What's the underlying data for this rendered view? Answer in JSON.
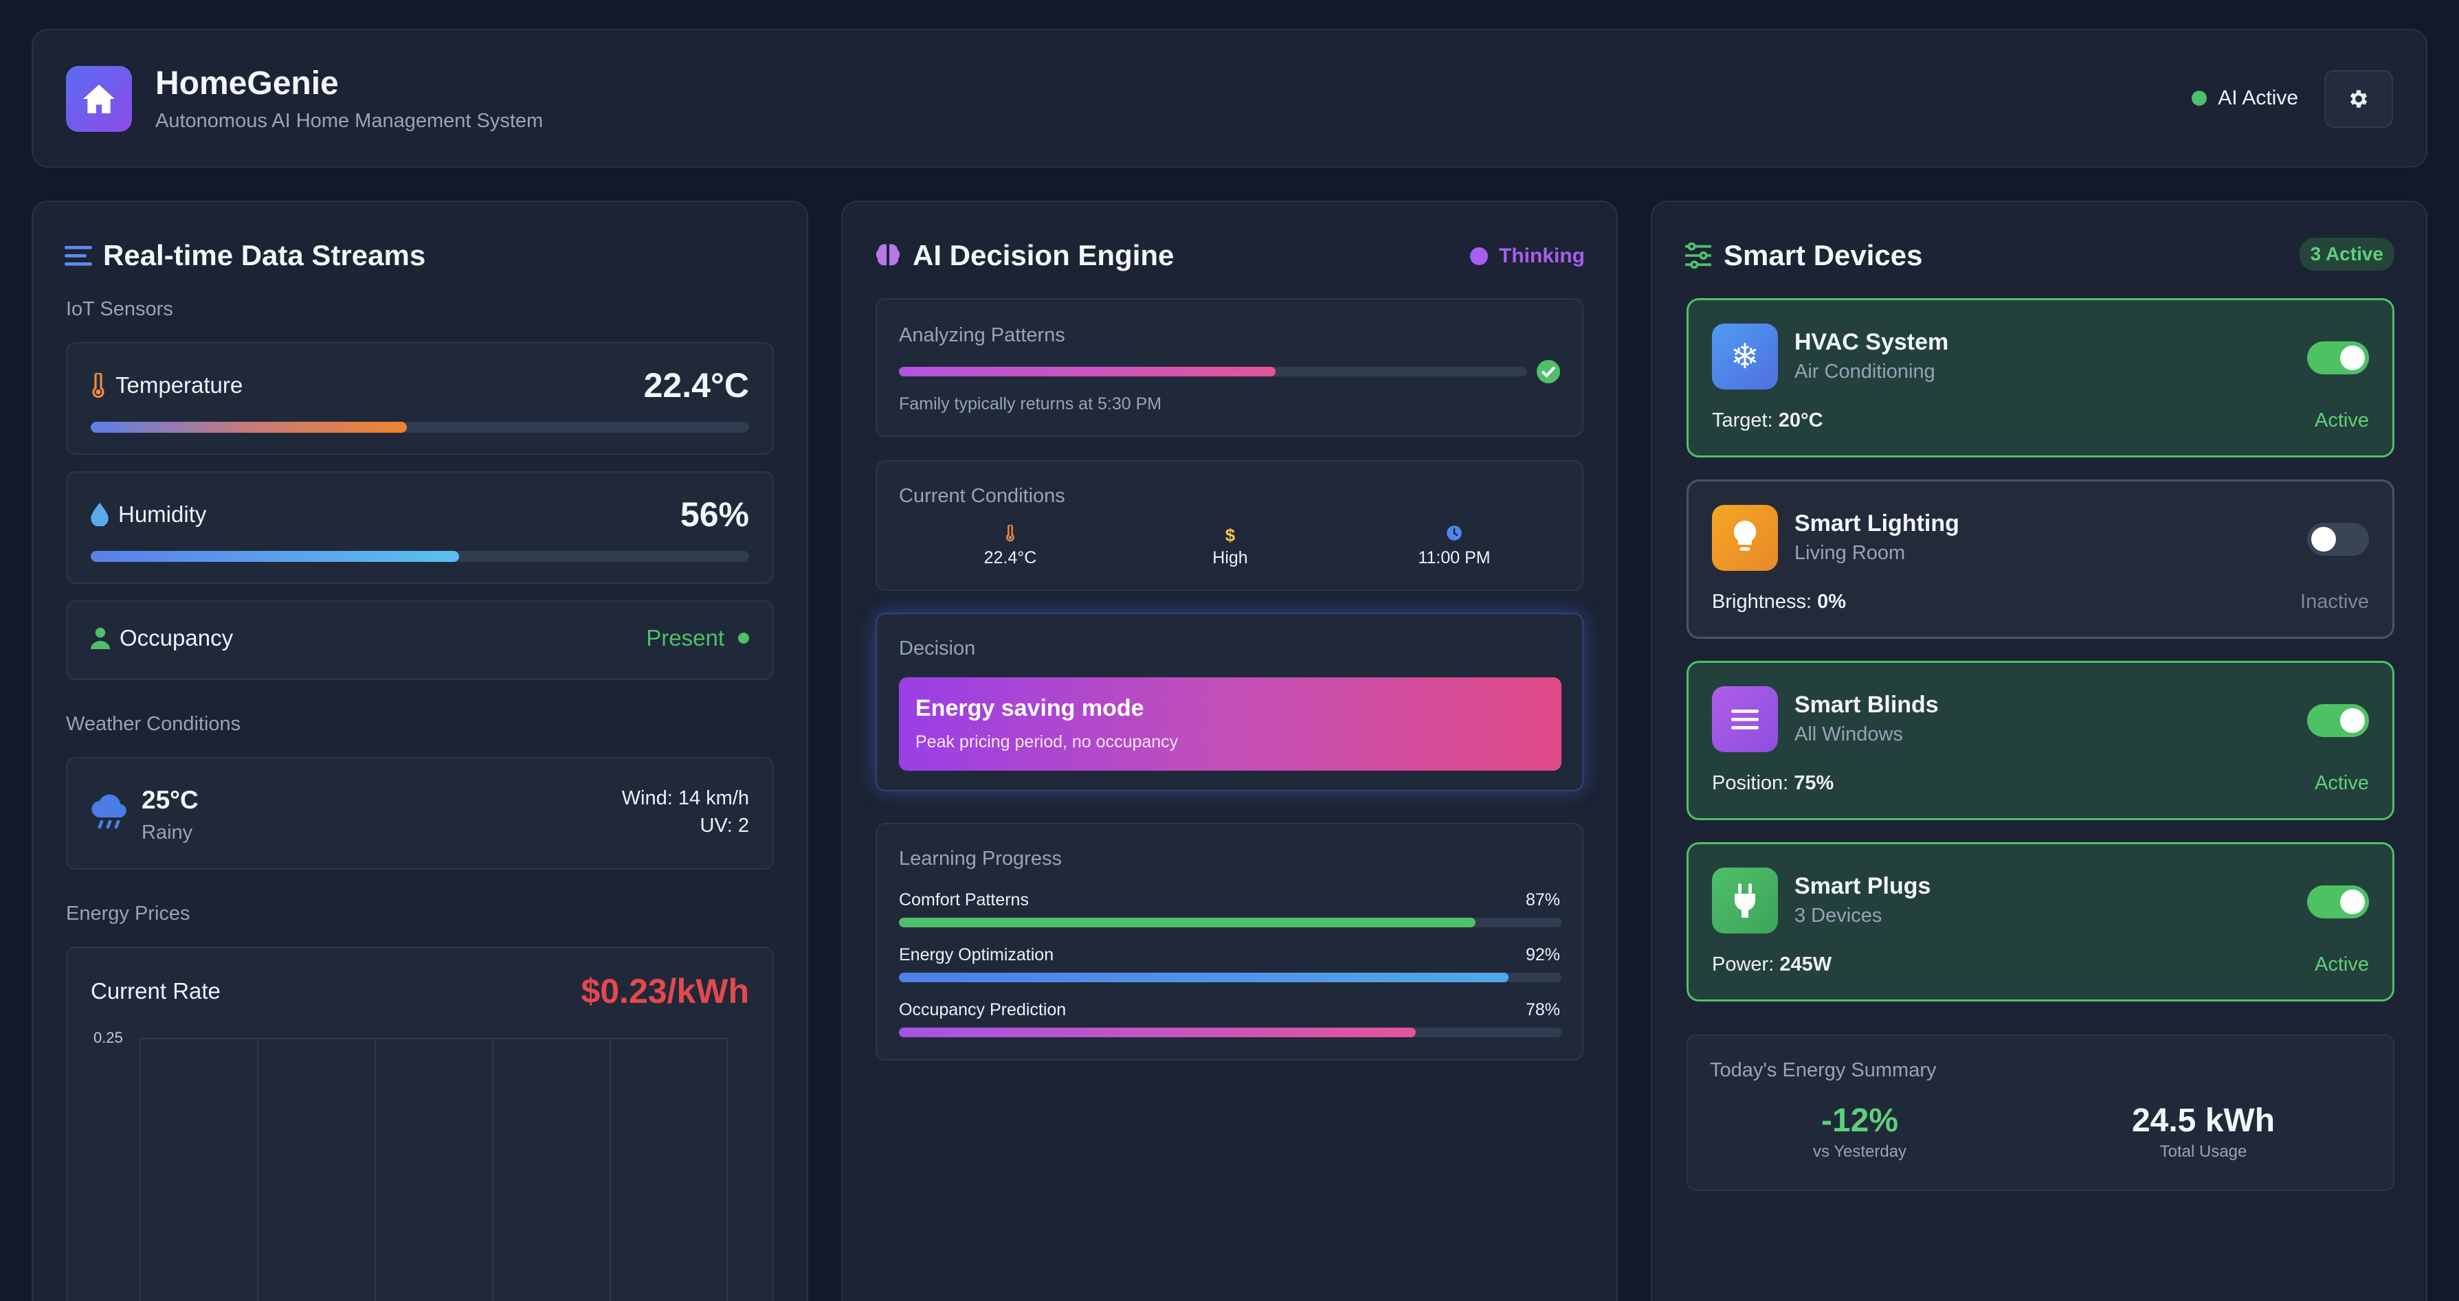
{
  "header": {
    "title": "HomeGenie",
    "subtitle": "Autonomous AI Home Management System",
    "status_label": "AI Active",
    "status_color": "#4fbf6a",
    "logo_icon": "home-icon",
    "settings_icon": "gear-icon"
  },
  "streams": {
    "title": "Real-time Data Streams",
    "iot_label": "IoT Sensors",
    "temperature": {
      "label": "Temperature",
      "value": "22.4°C",
      "level": 0.48
    },
    "humidity": {
      "label": "Humidity",
      "value": "56%",
      "level": 0.56
    },
    "occupancy": {
      "label": "Occupancy",
      "value": "Present"
    },
    "weather_label": "Weather Conditions",
    "weather": {
      "temp": "25°C",
      "condition": "Rainy",
      "wind": "Wind: 14 km/h",
      "uv": "UV: 2"
    },
    "energy_label": "Energy Prices",
    "energy": {
      "rate_label": "Current Rate",
      "rate_value": "$0.23/kWh",
      "rate_color": "#e5484d",
      "axis_tick": "0.25"
    }
  },
  "engine": {
    "title": "AI Decision Engine",
    "status": "Thinking",
    "status_color": "#a85ef0",
    "analyzing": {
      "label": "Analyzing Patterns",
      "progress": 0.6,
      "note": "Family typically returns at 5:30 PM"
    },
    "conditions": {
      "label": "Current Conditions",
      "items": [
        {
          "icon": "thermometer-icon",
          "value": "22.4°C"
        },
        {
          "icon": "dollar-icon",
          "value": "High"
        },
        {
          "icon": "clock-icon",
          "value": "11:00 PM"
        }
      ]
    },
    "decision": {
      "label": "Decision",
      "title": "Energy saving mode",
      "detail": "Peak pricing period, no occupancy"
    },
    "learning": {
      "label": "Learning Progress",
      "items": [
        {
          "name": "Comfort Patterns",
          "value": "87%",
          "level": 0.87
        },
        {
          "name": "Energy Optimization",
          "value": "92%",
          "level": 0.92
        },
        {
          "name": "Occupancy Prediction",
          "value": "78%",
          "level": 0.78
        }
      ]
    }
  },
  "devices": {
    "title": "Smart Devices",
    "badge": "3 Active",
    "items": [
      {
        "name": "HVAC System",
        "sub": "Air Conditioning",
        "metric_label": "Target:",
        "metric_value": "20°C",
        "state": "Active",
        "on": true,
        "icon": "snowflake-icon"
      },
      {
        "name": "Smart Lighting",
        "sub": "Living Room",
        "metric_label": "Brightness:",
        "metric_value": "0%",
        "state": "Inactive",
        "on": false,
        "icon": "lightbulb-icon"
      },
      {
        "name": "Smart Blinds",
        "sub": "All Windows",
        "metric_label": "Position:",
        "metric_value": "75%",
        "state": "Active",
        "on": true,
        "icon": "blinds-icon"
      },
      {
        "name": "Smart Plugs",
        "sub": "3 Devices",
        "metric_label": "Power:",
        "metric_value": "245W",
        "state": "Active",
        "on": true,
        "icon": "plug-icon"
      }
    ],
    "summary": {
      "label": "Today's Energy Summary",
      "change": "-12%",
      "change_label": "vs Yesterday",
      "usage": "24.5 kWh",
      "usage_label": "Total Usage"
    }
  }
}
